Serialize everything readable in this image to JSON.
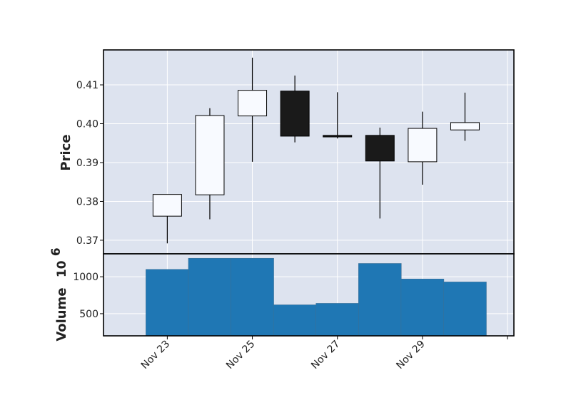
{
  "chart_data": {
    "type": "candlestick",
    "grid": true,
    "colors": {
      "panel_bg": "#dde3ef",
      "grid": "#ffffff",
      "up_fill": "#f8faff",
      "down_fill": "#1a1a1a",
      "edge": "#000000",
      "volume": "#1f77b4"
    },
    "price_panel": {
      "ylabel": "Price",
      "ylim": [
        0.3665,
        0.419
      ],
      "yticks": [
        0.37,
        0.38,
        0.39,
        0.4,
        0.41
      ],
      "ytick_labels": [
        "0.37",
        "0.38",
        "0.39",
        "0.40",
        "0.41"
      ]
    },
    "volume_panel": {
      "ylabel": "Volume",
      "ylabel_exponent": "10",
      "ylabel_exponent_power": "6",
      "ylim": [
        200,
        1310
      ],
      "yticks": [
        500,
        1000
      ],
      "ytick_labels": [
        "500",
        "1000"
      ]
    },
    "x_axis": {
      "xlim": [
        21.5,
        31.15
      ],
      "xticks": [
        23,
        25,
        27,
        29,
        31
      ],
      "xtick_labels": [
        "Nov 23",
        "Nov 25",
        "Nov 27",
        "Nov 29",
        ""
      ]
    },
    "candles": [
      {
        "x": 23,
        "open": 0.3762,
        "high": 0.3818,
        "low": 0.3692,
        "close": 0.3818
      },
      {
        "x": 24,
        "open": 0.3817,
        "high": 0.404,
        "low": 0.3754,
        "close": 0.4021
      },
      {
        "x": 25,
        "open": 0.402,
        "high": 0.417,
        "low": 0.3902,
        "close": 0.4086
      },
      {
        "x": 26,
        "open": 0.4084,
        "high": 0.4124,
        "low": 0.3952,
        "close": 0.3968
      },
      {
        "x": 27,
        "open": 0.397,
        "high": 0.4081,
        "low": 0.3962,
        "close": 0.3966
      },
      {
        "x": 28,
        "open": 0.397,
        "high": 0.399,
        "low": 0.3756,
        "close": 0.3904
      },
      {
        "x": 29,
        "open": 0.3902,
        "high": 0.4031,
        "low": 0.3843,
        "close": 0.3988
      },
      {
        "x": 30,
        "open": 0.3984,
        "high": 0.408,
        "low": 0.3956,
        "close": 0.4003
      }
    ],
    "volumes": [
      {
        "x": 23,
        "value": 1100
      },
      {
        "x": 24,
        "value": 1250
      },
      {
        "x": 25,
        "value": 1250
      },
      {
        "x": 26,
        "value": 620
      },
      {
        "x": 27,
        "value": 640
      },
      {
        "x": 28,
        "value": 1180
      },
      {
        "x": 29,
        "value": 970
      },
      {
        "x": 30,
        "value": 930
      }
    ]
  }
}
